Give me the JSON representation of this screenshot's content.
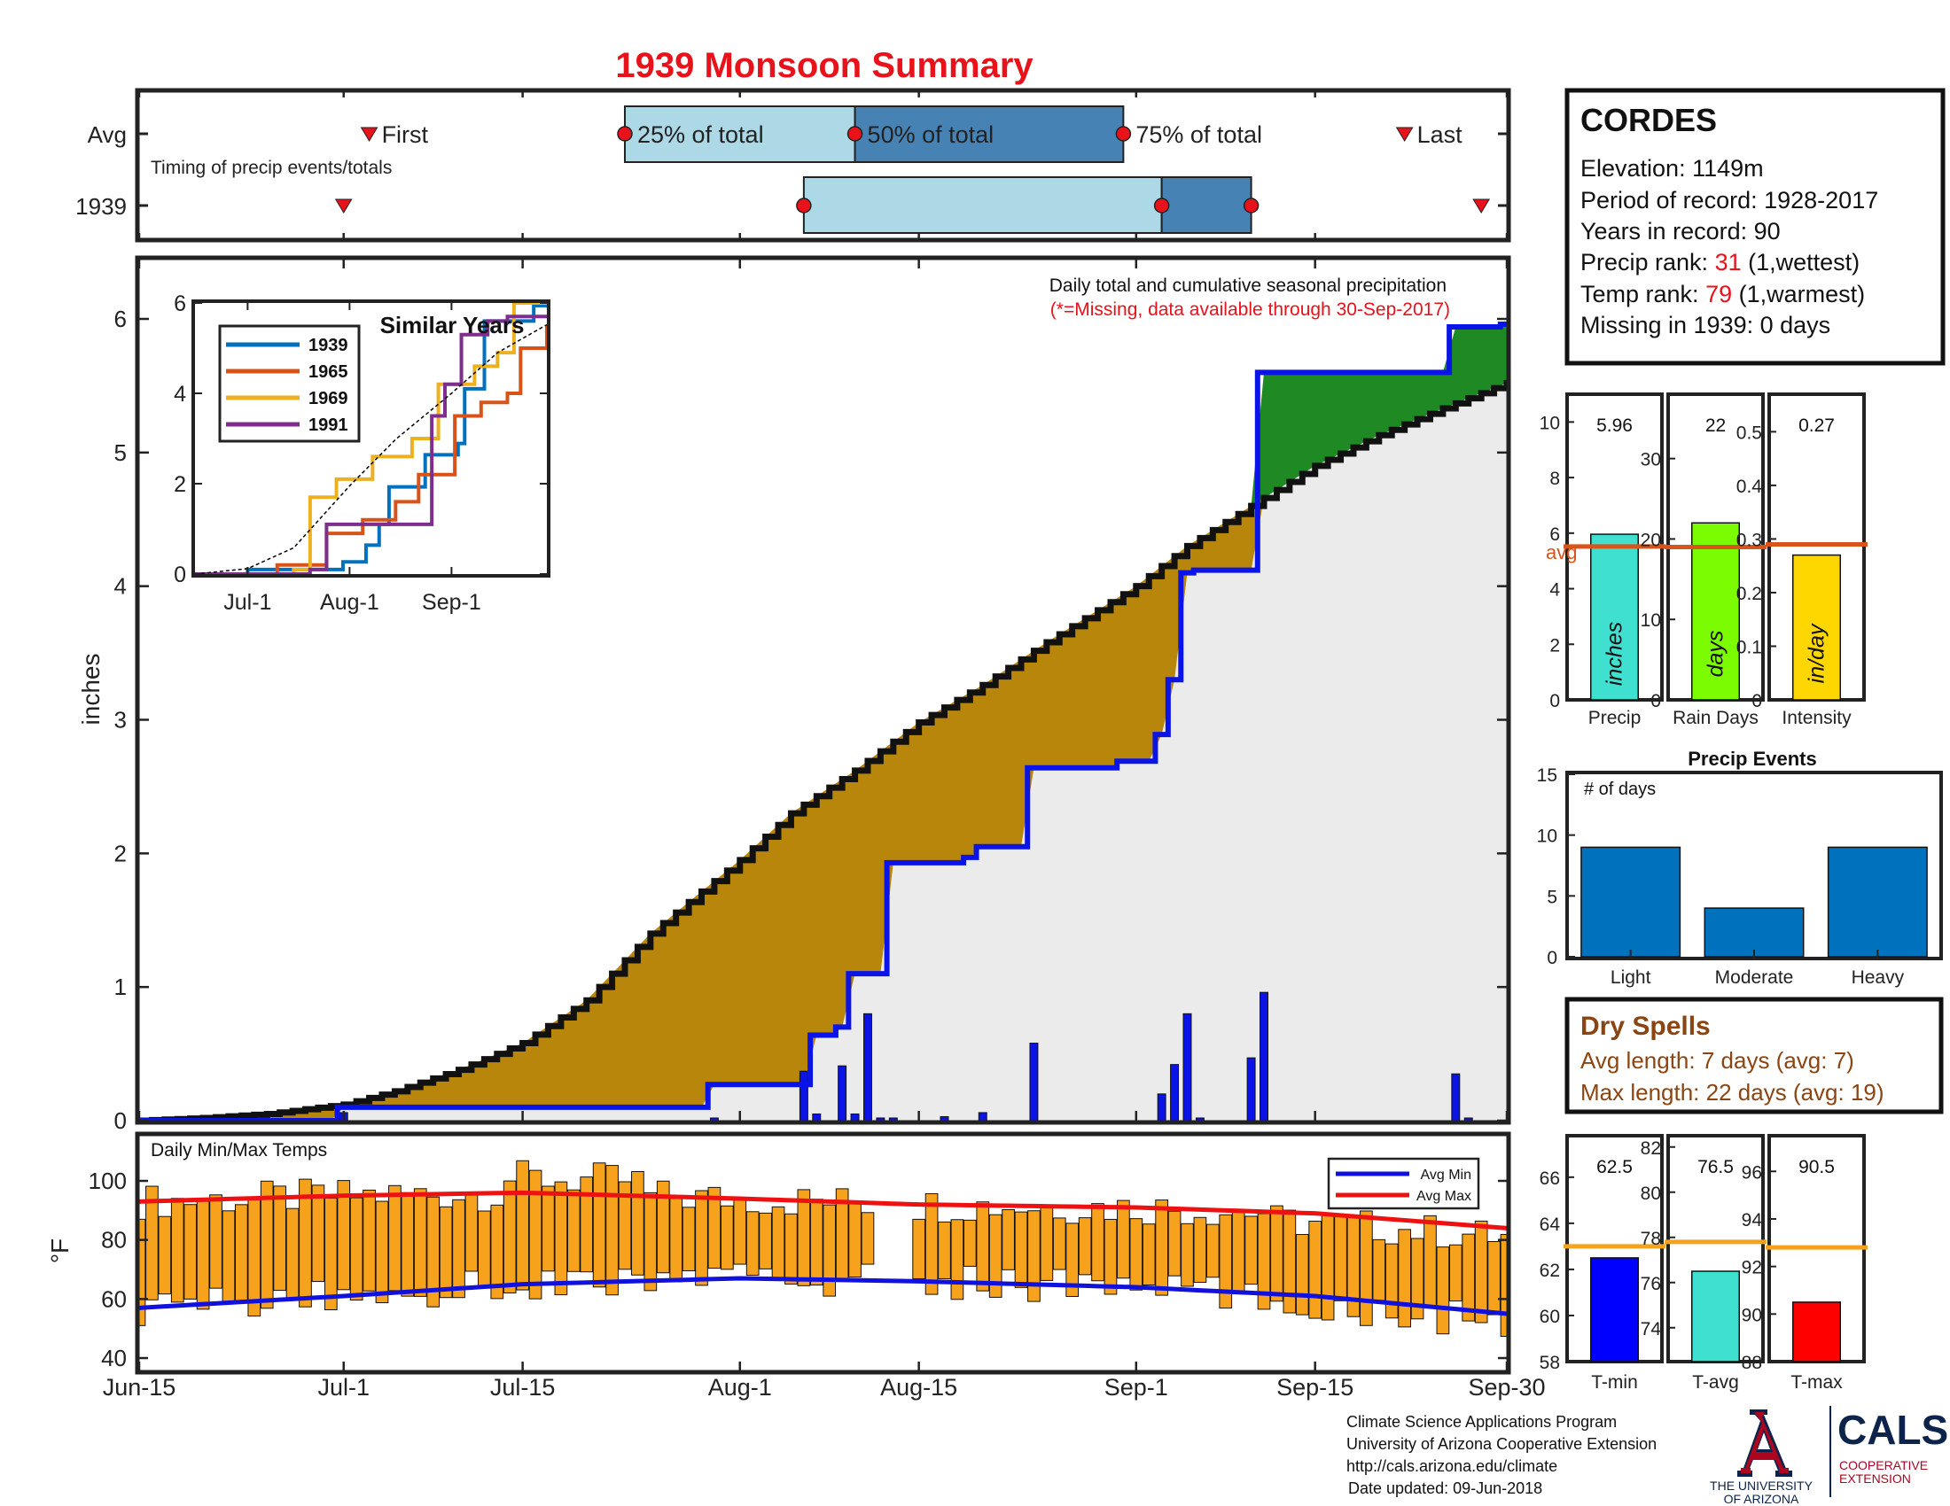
{
  "title": "1939 Monsoon Summary",
  "colors": {
    "title": "#e8121b",
    "rank": "#e8121b",
    "cum_avg_fill": "#b8860b",
    "cum_above_fill": "#1f8a24",
    "cum_bg": "#ebebeb",
    "precip_line": "#0a14e6",
    "daily_bar": "#0a14e6",
    "timing_light": "#add8e6",
    "timing_dark": "#4682b4",
    "temp_bar": "#f6a21d",
    "avg_max": "#ee1111",
    "avg_min": "#1111dd",
    "avg_line": "#d9541a",
    "precip_bar": "#40e0d0",
    "raindays_bar": "#7cfc00",
    "intensity_bar": "#ffd700",
    "events_bar": "#0072bd",
    "tmin_bar": "#0000ff",
    "tavg_bar": "#40e0d0",
    "tmax_bar": "#ff0000",
    "temp_avg_line": "#f6a21d",
    "dry": "#8b4513",
    "ua_red": "#ab0520",
    "ua_navy": "#0c234b"
  },
  "timing": {
    "row_labels": [
      "Avg",
      "1939"
    ],
    "caption": "Timing of precip events/totals",
    "avg": {
      "first": "Jul-3",
      "p25": "Jul-23",
      "p50": "Aug-10",
      "p75": "Aug-31",
      "last": "Sep-22"
    },
    "year": {
      "first": "Jul-1",
      "p25": "Aug-6",
      "p50": "Sep-3",
      "p75": "Sep-10",
      "last": "Sep-28"
    },
    "labels": {
      "first": "First",
      "p25": "25% of total",
      "p50": "50% of total",
      "p75": "75% of total",
      "last": "Last"
    }
  },
  "station": {
    "name": "CORDES",
    "elevation": "Elevation: 1149m",
    "period": "Period of record: 1928-2017",
    "years": "Years in record: 90",
    "precip_rank_label": "Precip rank: ",
    "precip_rank_value": "31",
    "precip_rank_note": " (1,wettest)",
    "temp_rank_label": "Temp rank: ",
    "temp_rank_value": "79",
    "temp_rank_note": " (1,warmest)",
    "missing": "Missing in 1939: 0 days"
  },
  "main": {
    "note": "Daily total and cumulative seasonal precipitation",
    "note_missing": "(*=Missing, data available through 30-Sep-2017)",
    "ylabel": "inches",
    "x_ticks": [
      "Jun-15",
      "Jul-1",
      "Jul-15",
      "Aug-1",
      "Aug-15",
      "Sep-1",
      "Sep-15",
      "Sep-30"
    ]
  },
  "chart_data": [
    {
      "id": "cumulative",
      "type": "area",
      "title": "",
      "ylabel": "inches",
      "ylim": [
        0,
        6.4
      ],
      "y_ticks": [
        0,
        1,
        2,
        3,
        4,
        5,
        6
      ],
      "x_ticks": [
        "Jun-15",
        "Jul-1",
        "Jul-15",
        "Aug-1",
        "Aug-15",
        "Sep-1",
        "Sep-15",
        "Sep-30"
      ],
      "series": [
        {
          "name": "avg cumulative",
          "x": [
            "Jun-15",
            "Jun-20",
            "Jun-25",
            "Jul-1",
            "Jul-5",
            "Jul-10",
            "Jul-15",
            "Jul-20",
            "Jul-25",
            "Aug-1",
            "Aug-5",
            "Aug-10",
            "Aug-15",
            "Aug-20",
            "Aug-25",
            "Sep-1",
            "Sep-5",
            "Sep-10",
            "Sep-15",
            "Sep-20",
            "Sep-25",
            "Sep-30"
          ],
          "values": [
            0.0,
            0.02,
            0.05,
            0.12,
            0.22,
            0.38,
            0.58,
            0.9,
            1.4,
            1.95,
            2.3,
            2.62,
            2.98,
            3.26,
            3.58,
            4.0,
            4.3,
            4.6,
            4.9,
            5.13,
            5.33,
            5.52
          ]
        },
        {
          "name": "1939 cumulative",
          "x": [
            "Jun-15",
            "Jun-30",
            "Jul-1",
            "Jul-29",
            "Jul-30",
            "Aug-6",
            "Aug-7",
            "Aug-9",
            "Aug-10",
            "Aug-12",
            "Aug-13",
            "Aug-19",
            "Aug-20",
            "Aug-23",
            "Aug-24",
            "Aug-31",
            "Sep-1",
            "Sep-3",
            "Sep-4",
            "Sep-5",
            "Sep-6",
            "Sep-10",
            "Sep-11",
            "Sep-25",
            "Sep-26",
            "Sep-30"
          ],
          "values": [
            0.0,
            0.0,
            0.1,
            0.1,
            0.27,
            0.27,
            0.64,
            0.7,
            1.1,
            1.1,
            1.93,
            1.97,
            2.05,
            2.05,
            2.64,
            2.69,
            2.69,
            2.89,
            3.3,
            4.1,
            4.12,
            4.12,
            5.6,
            5.6,
            5.94,
            5.96
          ]
        }
      ],
      "daily_bars": {
        "x": [
          "Jul-1",
          "Jul-30",
          "Aug-6",
          "Aug-7",
          "Aug-9",
          "Aug-10",
          "Aug-11",
          "Aug-12",
          "Aug-13",
          "Aug-17",
          "Aug-20",
          "Aug-24",
          "Sep-3",
          "Sep-4",
          "Sep-5",
          "Sep-6",
          "Sep-10",
          "Sep-11",
          "Sep-26",
          "Sep-27"
        ],
        "values": [
          0.06,
          0.02,
          0.37,
          0.05,
          0.41,
          0.05,
          0.8,
          0.02,
          0.02,
          0.03,
          0.06,
          0.58,
          0.2,
          0.42,
          0.8,
          0.02,
          0.47,
          0.96,
          0.35,
          0.02
        ]
      }
    },
    {
      "id": "similar-years",
      "type": "line",
      "title": "Similar Years",
      "ylim": [
        0,
        6
      ],
      "y_ticks": [
        0,
        2,
        4,
        6
      ],
      "x_ticks": [
        "Jul-1",
        "Aug-1",
        "Sep-1"
      ],
      "series": [
        {
          "name": "1939",
          "color": "#0072bd",
          "x": [
            "Jun-15",
            "Jul-1",
            "Jul-30",
            "Aug-6",
            "Aug-10",
            "Aug-13",
            "Aug-24",
            "Sep-3",
            "Sep-5",
            "Sep-11",
            "Sep-26",
            "Sep-30"
          ],
          "values": [
            0,
            0.1,
            0.27,
            0.64,
            1.1,
            1.93,
            2.64,
            2.89,
            4.1,
            5.6,
            5.94,
            5.96
          ]
        },
        {
          "name": "1965",
          "color": "#d95319",
          "x": [
            "Jun-15",
            "Jul-10",
            "Jul-25",
            "Aug-5",
            "Aug-15",
            "Aug-22",
            "Sep-2",
            "Sep-10",
            "Sep-18",
            "Sep-22",
            "Sep-30"
          ],
          "values": [
            0,
            0.2,
            0.9,
            1.2,
            1.6,
            2.2,
            3.5,
            3.8,
            4.0,
            5.0,
            5.5
          ]
        },
        {
          "name": "1969",
          "color": "#edb120",
          "x": [
            "Jun-15",
            "Jul-15",
            "Jul-20",
            "Jul-28",
            "Aug-8",
            "Aug-20",
            "Aug-28",
            "Sep-8",
            "Sep-15",
            "Sep-20",
            "Sep-30"
          ],
          "values": [
            0,
            0.1,
            1.7,
            2.1,
            2.6,
            3.0,
            4.2,
            4.6,
            4.9,
            6.0,
            6.0
          ]
        },
        {
          "name": "1991",
          "color": "#7e2f8e",
          "x": [
            "Jun-15",
            "Jul-20",
            "Jul-25",
            "Aug-12",
            "Aug-26",
            "Aug-30",
            "Sep-4",
            "Sep-12",
            "Sep-18",
            "Sep-30"
          ],
          "values": [
            0,
            0.1,
            1.1,
            1.1,
            3.5,
            4.2,
            5.3,
            5.6,
            5.7,
            5.7
          ]
        },
        {
          "name": "avg",
          "color": "#000000",
          "x": [
            "Jun-15",
            "Jul-1",
            "Jul-15",
            "Aug-1",
            "Aug-15",
            "Sep-1",
            "Sep-15",
            "Sep-30"
          ],
          "values": [
            0,
            0.12,
            0.58,
            1.95,
            2.98,
            4.0,
            4.9,
            5.52
          ]
        }
      ]
    },
    {
      "id": "temps",
      "type": "bar",
      "title": "Daily Min/Max Temps",
      "ylabel": "°F",
      "ylim": [
        39,
        112
      ],
      "y_ticks": [
        40,
        60,
        80,
        100
      ],
      "series": [
        {
          "name": "Avg Min",
          "color": "#1111dd",
          "x": [
            "Jun-15",
            "Jul-1",
            "Jul-15",
            "Aug-1",
            "Aug-15",
            "Sep-1",
            "Sep-15",
            "Sep-30"
          ],
          "values": [
            57,
            61,
            65,
            67,
            66,
            64,
            61,
            55
          ]
        },
        {
          "name": "Avg Max",
          "color": "#ee1111",
          "x": [
            "Jun-15",
            "Jul-1",
            "Jul-15",
            "Aug-1",
            "Aug-15",
            "Sep-1",
            "Sep-15",
            "Sep-30"
          ],
          "values": [
            93,
            95,
            96,
            94,
            92,
            91,
            89,
            84
          ]
        }
      ]
    },
    {
      "id": "summary-precip",
      "type": "bar",
      "categories": [
        "Precip",
        "Rain Days",
        "Intensity"
      ],
      "values": [
        5.96,
        22,
        0.27
      ],
      "value_labels": [
        "5.96",
        "22",
        "0.27"
      ],
      "units": [
        "inches",
        "days",
        "in/day"
      ],
      "averages": [
        5.52,
        19,
        0.29
      ],
      "ylims": [
        [
          0,
          11
        ],
        [
          0,
          38
        ],
        [
          0,
          0.57
        ]
      ],
      "y_ticks": [
        [
          0,
          2,
          4,
          6,
          8,
          10
        ],
        [
          0,
          10,
          20,
          30
        ],
        [
          0,
          0.1,
          0.2,
          0.3,
          0.4,
          0.5
        ]
      ],
      "avg_label": "avg"
    },
    {
      "id": "precip-events",
      "type": "bar",
      "title": "Precip Events",
      "ylabel": "# of days",
      "categories": [
        "Light",
        "Moderate",
        "Heavy"
      ],
      "values": [
        9,
        4,
        9
      ],
      "ylim": [
        0,
        15
      ],
      "y_ticks": [
        0,
        5,
        10,
        15
      ]
    },
    {
      "id": "summary-temps",
      "type": "bar",
      "categories": [
        "T-min",
        "T-avg",
        "T-max"
      ],
      "values": [
        62.5,
        76.5,
        90.5
      ],
      "value_labels": [
        "62.5",
        "76.5",
        "90.5"
      ],
      "averages": [
        63.0,
        77.8,
        92.8
      ],
      "ylims": [
        [
          58,
          67.8
        ],
        [
          72.5,
          82.5
        ],
        [
          88,
          97.5
        ]
      ],
      "y_ticks": [
        [
          58,
          60,
          62,
          64,
          66
        ],
        [
          74,
          76,
          78,
          80,
          82
        ],
        [
          88,
          90,
          92,
          94,
          96
        ]
      ]
    }
  ],
  "dry_spells": {
    "title": "Dry Spells",
    "avg_length": "Avg length: 7 days (avg: 7)",
    "max_length": "Max length: 22 days (avg: 19)"
  },
  "footer": {
    "line1": "Climate Science Applications Program",
    "line2": "University of Arizona Cooperative Extension",
    "line3": "http://cals.arizona.edu/climate",
    "line4": "Date updated: 09-Jun-2018"
  },
  "logos": {
    "ua_line1": "THE UNIVERSITY",
    "ua_line2": "OF ARIZONA",
    "cals": "CALS",
    "cals_sub1": "COOPERATIVE",
    "cals_sub2": "EXTENSION"
  }
}
